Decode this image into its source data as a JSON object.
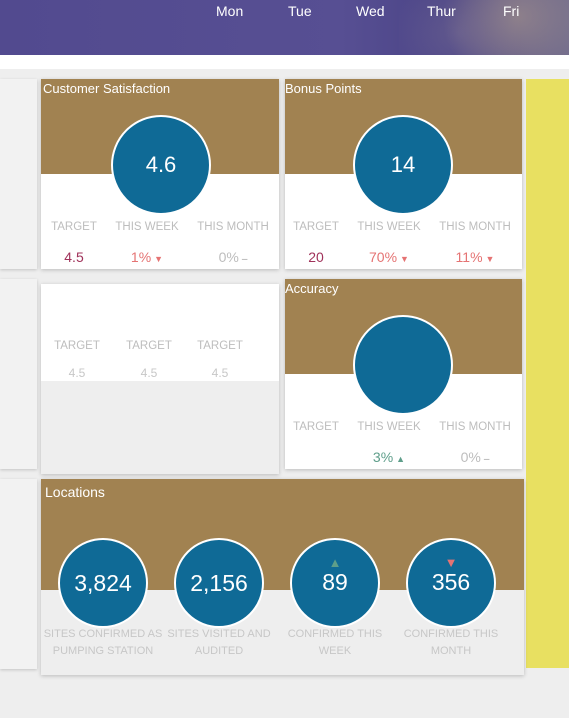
{
  "header": {
    "days": [
      "Mon",
      "Tue",
      "Wed",
      "Thur",
      "Fri"
    ]
  },
  "customer_satisfaction": {
    "title": "Customer Satisfaction",
    "value": "4.6",
    "labels": {
      "target": "TARGET",
      "this_week": "THIS WEEK",
      "this_month": "THIS MONTH"
    },
    "target": "4.5",
    "this_week": "1%",
    "this_week_trend": "down",
    "this_month": "0%",
    "this_month_trend": "flat"
  },
  "bonus_points": {
    "title": "Bonus Points",
    "value": "14",
    "labels": {
      "target": "TARGET",
      "this_week": "THIS WEEK",
      "this_month": "THIS MONTH"
    },
    "target": "20",
    "this_week": "70%",
    "this_week_trend": "down",
    "this_month": "11%",
    "this_month_trend": "down"
  },
  "blank_card": {
    "labels": [
      "TARGET",
      "TARGET",
      "TARGET"
    ],
    "values": [
      "4.5",
      "4.5",
      "4.5"
    ]
  },
  "accuracy": {
    "title": "Accuracy",
    "value": "",
    "labels": {
      "target": "TARGET",
      "this_week": "THIS WEEK",
      "this_month": "THIS MONTH"
    },
    "target": "",
    "this_week": "3%",
    "this_week_trend": "up",
    "this_month": "0%",
    "this_month_trend": "flat"
  },
  "locations": {
    "title": "Locations",
    "items": [
      {
        "value": "3,824",
        "label": "SITES CONFIRMED AS PUMPING STATION",
        "trend": ""
      },
      {
        "value": "2,156",
        "label": "SITES VISITED AND AUDITED",
        "trend": ""
      },
      {
        "value": "89",
        "label": "CONFIRMED THIS WEEK",
        "trend": "up"
      },
      {
        "value": "356",
        "label": "CONFIRMED THIS MONTH",
        "trend": "down"
      }
    ]
  },
  "glyphs": {
    "down": "▼",
    "up": "▲",
    "flat": "–"
  },
  "colors": {
    "band": "#a18251",
    "circle": "#0f6a96",
    "header": "#524a8f",
    "yellow": "#e8e061",
    "negative": "#e57373",
    "positive": "#5e9e8a",
    "target_value": "#a0325a"
  }
}
